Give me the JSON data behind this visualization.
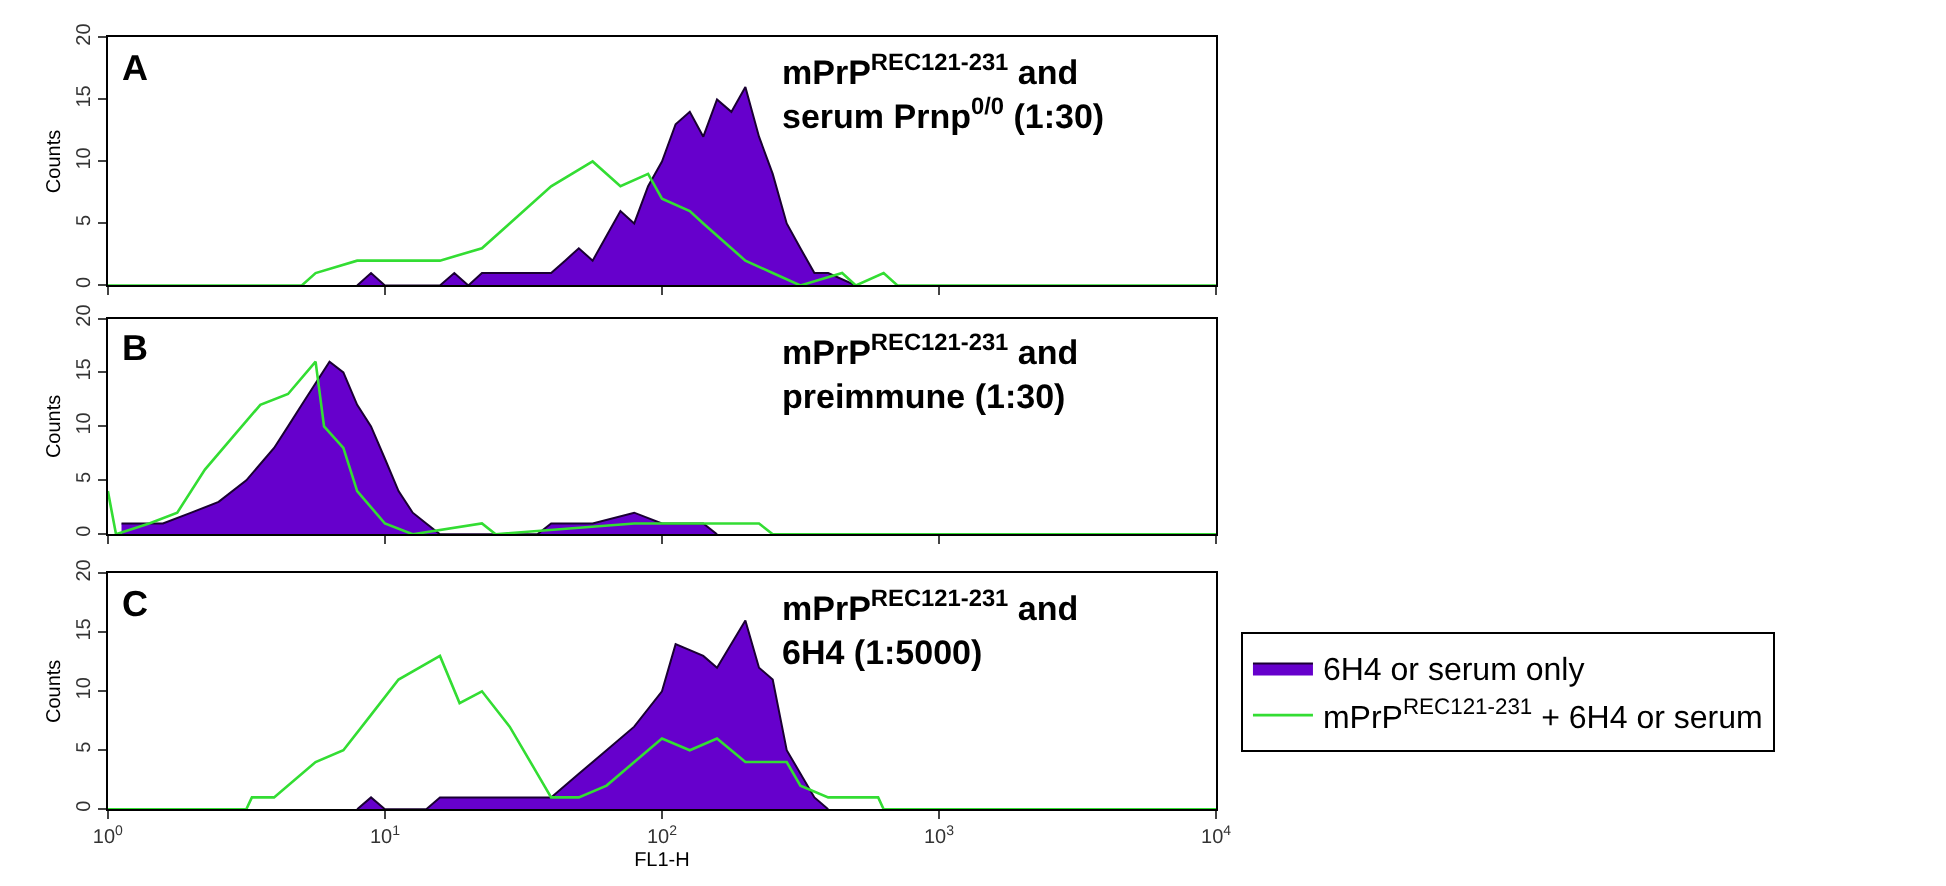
{
  "chart_data": [
    {
      "type": "area",
      "annotations": [
        "A",
        "mPrP$^{REC121-231}$ and\nserum Prnp$^{0/0}$ (1:30)"
      ],
      "ylabel": "Counts",
      "log": "x",
      "xlim": [
        1,
        10000
      ],
      "xticks": [
        {
          "value": 1,
          "label": null
        },
        {
          "value": 10,
          "label": null
        },
        {
          "value": 100,
          "label": null
        },
        {
          "value": 1000,
          "label": null
        },
        {
          "value": 10000,
          "label": null
        }
      ],
      "ylim": [
        0,
        20
      ],
      "yticks": [
        0,
        5,
        10,
        15,
        20
      ],
      "tick_labels": "y",
      "legend": false,
      "series": [
        {
          "color": "#6600cc",
          "x": [
            7.94,
            8.91,
            10,
            15.8,
            17.8,
            20,
            22.4,
            39.8,
            44.7,
            50.1,
            56.2,
            63.1,
            70.8,
            79.4,
            89.1,
            100,
            112,
            126,
            141,
            158,
            178,
            200,
            224,
            251,
            282,
            316,
            355,
            398,
            501
          ],
          "values": [
            0,
            1,
            0,
            0,
            1,
            0,
            1,
            1,
            2,
            3,
            2,
            4,
            6,
            5,
            8,
            10,
            13,
            14,
            12,
            15,
            14,
            16,
            12,
            9,
            5,
            3,
            1,
            1,
            0
          ]
        },
        {
          "type": "line",
          "color": "#33dd33",
          "x": [
            1,
            5.01,
            5.62,
            7.94,
            15.8,
            22.4,
            28.2,
            39.8,
            56.2,
            70.8,
            89.1,
            100,
            126,
            141,
            178,
            200,
            251,
            316,
            447,
            501,
            631,
            708,
            10000
          ],
          "values": [
            0,
            0,
            1,
            2,
            2,
            3,
            5,
            8,
            10,
            8,
            9,
            7,
            6,
            5,
            3,
            2,
            1,
            0,
            1,
            0,
            1,
            0,
            0
          ]
        }
      ]
    },
    {
      "type": "area",
      "annotations": [
        "B",
        "mPrP$^{REC121-231}$ and\npreimmune (1:30)"
      ],
      "ylabel": "Counts",
      "log": "x",
      "xlim": [
        1,
        10000
      ],
      "xticks": [
        {
          "value": 1,
          "label": null
        },
        {
          "value": 10,
          "label": null
        },
        {
          "value": 100,
          "label": null
        },
        {
          "value": 1000,
          "label": null
        },
        {
          "value": 10000,
          "label": null
        }
      ],
      "ylim": [
        0,
        20
      ],
      "yticks": [
        0,
        5,
        10,
        15,
        20
      ],
      "tick_labels": "y",
      "legend": false,
      "series": [
        {
          "color": "#6600cc",
          "x": [
            1.12,
            1.58,
            2.0,
            2.51,
            3.16,
            3.98,
            4.47,
            5.01,
            5.62,
            6.31,
            7.08,
            7.94,
            8.91,
            10,
            11.2,
            12.6,
            14.1,
            15.8,
            35.5,
            39.8,
            56.2,
            79.4,
            100,
            141,
            158
          ],
          "values": [
            1,
            1,
            2,
            3,
            5,
            8,
            10,
            12,
            14,
            16,
            15,
            12,
            10,
            7,
            4,
            2,
            1,
            0,
            0,
            1,
            1,
            2,
            1,
            1,
            0
          ]
        },
        {
          "type": "line",
          "color": "#33dd33",
          "x": [
            1,
            1.07,
            1.41,
            1.78,
            2.24,
            2.82,
            3.55,
            4.47,
            5.62,
            6.03,
            7.08,
            7.94,
            10,
            12.6,
            22.4,
            25.1,
            79.4,
            100,
            224,
            251,
            10000
          ],
          "values": [
            4,
            0,
            1,
            2,
            6,
            9,
            12,
            13,
            16,
            10,
            8,
            4,
            1,
            0,
            1,
            0,
            1,
            1,
            1,
            0,
            0
          ]
        }
      ]
    },
    {
      "type": "area",
      "annotations": [
        "C",
        "mPrP$^{REC121-231}$ and\n6H4 (1:5000)"
      ],
      "xlabel": "FL1-H",
      "ylabel": "Counts",
      "log": "x",
      "xlim": [
        1,
        10000
      ],
      "xticks": [
        {
          "value": 1,
          "label": "10$^{0}$"
        },
        {
          "value": 10,
          "label": "10$^{1}$"
        },
        {
          "value": 100,
          "label": "10$^{2}$"
        },
        {
          "value": 1000,
          "label": "10$^{3}$"
        },
        {
          "value": 10000,
          "label": "10$^{4}$"
        }
      ],
      "ylim": [
        0,
        20
      ],
      "yticks": [
        0,
        5,
        10,
        15,
        20
      ],
      "legend": "right",
      "series": [
        {
          "name": "6H4 or serum only",
          "color": "#6600cc",
          "x": [
            7.94,
            8.91,
            10,
            14.1,
            15.8,
            31.6,
            39.8,
            50.1,
            63.1,
            79.4,
            100,
            112,
            141,
            158,
            200,
            224,
            251,
            282,
            355,
            398
          ],
          "values": [
            0,
            1,
            0,
            0,
            1,
            1,
            1,
            3,
            5,
            7,
            10,
            14,
            13,
            12,
            16,
            12,
            11,
            5,
            1,
            0
          ]
        },
        {
          "type": "line",
          "name": "mPrP$^{REC121-231}$ + 6H4 or serum",
          "color": "#33dd33",
          "x": [
            1,
            3.16,
            3.31,
            3.98,
            5.62,
            7.08,
            8.91,
            11.2,
            15.8,
            18.6,
            22.4,
            28.2,
            35.5,
            39.8,
            50.1,
            63.1,
            89.1,
            100,
            126,
            158,
            200,
            282,
            316,
            398,
            603,
            631,
            10000
          ],
          "values": [
            0,
            0,
            1,
            1,
            4,
            5,
            8,
            11,
            13,
            9,
            10,
            7,
            3,
            1,
            1,
            2,
            5,
            6,
            5,
            6,
            4,
            4,
            2,
            1,
            1,
            0,
            0
          ]
        }
      ]
    }
  ]
}
